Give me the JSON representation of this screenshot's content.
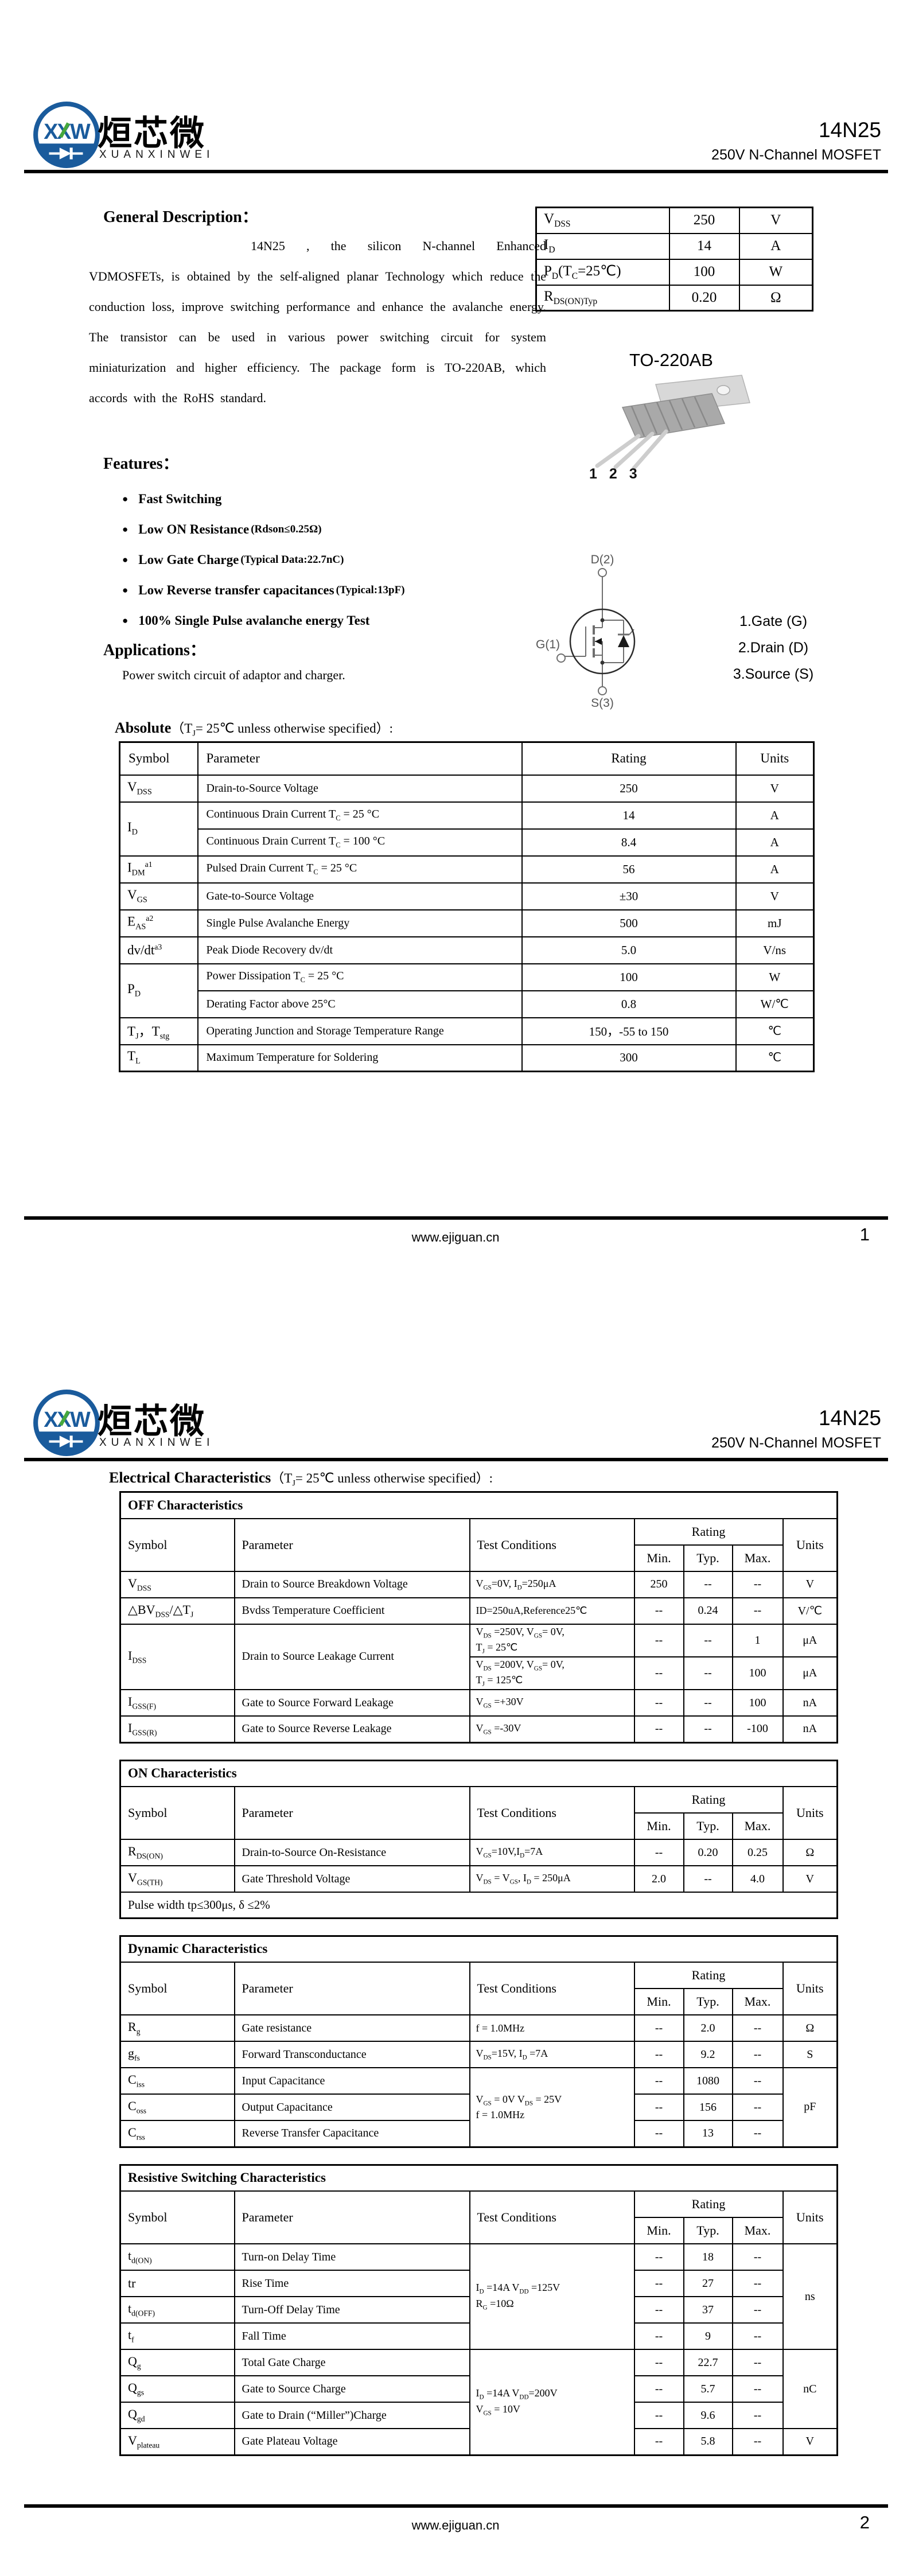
{
  "brand": {
    "cn": "烜芯微",
    "en": "XUANXINWEI",
    "part": "14N25",
    "subtitle": "250V N-Channel MOSFET",
    "logo_colors": {
      "blue": "#1a5b9c",
      "green": "#46a83c"
    }
  },
  "footer": {
    "url": "www.ejiguan.cn",
    "page1": "1",
    "page2": "2"
  },
  "page1": {
    "general": {
      "title": "General Description：",
      "body": "14N25 , the silicon N-channel Enhanced VDMOSFETs, is obtained by the self-aligned planar Technology which reduce the conduction loss, improve switching performance and enhance the avalanche energy. The transistor can be used in various power switching circuit for system miniaturization and higher efficiency. The package form is TO-220AB, which accords with the RoHS standard."
    },
    "features": {
      "title": "Features：",
      "items": [
        {
          "text": "Fast Switching",
          "note": ""
        },
        {
          "text": "Low ON Resistance",
          "note": "(Rdson≤0.25Ω)"
        },
        {
          "text": "Low Gate Charge",
          "note": " (Typical Data:22.7nC)"
        },
        {
          "text": "Low Reverse transfer capacitances",
          "note": "(Typical:13pF)"
        },
        {
          "text": "100% Single Pulse avalanche energy Test",
          "note": ""
        }
      ]
    },
    "applications": {
      "title": "Applications：",
      "body": "Power switch circuit of adaptor and charger."
    },
    "summary": {
      "rows": [
        {
          "label": "V_DSS_",
          "value": "250",
          "unit": "V"
        },
        {
          "label": "I_D_",
          "value": "14",
          "unit": "A"
        },
        {
          "label": "P_D_(T_C_=25℃)",
          "value": "100",
          "unit": "W"
        },
        {
          "label": "R_DS(ON)Typ_",
          "value": "0.20",
          "unit": "Ω"
        }
      ]
    },
    "package": {
      "name": "TO-220AB",
      "pins": "1 2 3",
      "sym_d": "D(2)",
      "sym_g": "G(1)",
      "sym_s": "S(3)",
      "legend": [
        "1.Gate (G)",
        "2.Drain (D)",
        "3.Source (S)"
      ]
    },
    "absolute": {
      "title": "Absolute",
      "title_rest": "（T_J_= 25℃  unless otherwise specified）:",
      "headers": [
        "Symbol",
        "Parameter",
        "Rating",
        "Units"
      ],
      "rows": [
        {
          "symbol": "V_DSS_",
          "parameter": "Drain-to-Source Voltage",
          "rating": "250",
          "unit": "V"
        },
        {
          "symbol": "I_D_",
          "parameter": "Continuous Drain Current T_C_ = 25 °C",
          "rating": "14",
          "unit": "A"
        },
        {
          "parameter": "Continuous Drain Current T_C_ = 100 °C",
          "rating": "8.4",
          "unit": "A"
        },
        {
          "symbol": "I_DM_^a1^",
          "parameter": "Pulsed Drain Current T_C_ = 25 °C",
          "rating": "56",
          "unit": "A"
        },
        {
          "symbol": "V_GS_",
          "parameter": "Gate-to-Source Voltage",
          "rating": "±30",
          "unit": "V"
        },
        {
          "symbol": "E_AS_^a2^",
          "parameter": "Single Pulse Avalanche Energy",
          "rating": "500",
          "unit": "mJ"
        },
        {
          "symbol": "dv/dt^a3^",
          "parameter": "Peak Diode Recovery dv/dt",
          "rating": "5.0",
          "unit": "V/ns"
        },
        {
          "symbol": "P_D_",
          "parameter": "Power Dissipation T_C_ = 25 °C",
          "rating": "100",
          "unit": "W"
        },
        {
          "parameter": "Derating Factor above 25°C",
          "rating": "0.8",
          "unit": "W/℃"
        },
        {
          "symbol": "T_J_，T_stg_",
          "parameter": "Operating Junction and Storage Temperature Range",
          "rating": "150，-55 to 150",
          "unit": "℃"
        },
        {
          "symbol": "T_L_",
          "parameter": "Maximum Temperature for Soldering",
          "rating": "300",
          "unit": "℃"
        }
      ]
    }
  },
  "page2": {
    "title": "Electrical Characteristics",
    "title_rest": "（T_J_= 25℃  unless otherwise specified）:",
    "headers": {
      "symbol": "Symbol",
      "parameter": "Parameter",
      "conditions": "Test Conditions",
      "rating": "Rating",
      "min": "Min.",
      "typ": "Typ.",
      "max": "Max.",
      "units": "Units"
    },
    "off": {
      "title": "OFF Characteristics",
      "rows": [
        {
          "symbol": "V_DSS_",
          "parameter": "Drain to Source Breakdown Voltage",
          "conditions": "V_GS_=0V, I_D_=250μA",
          "min": "250",
          "typ": "--",
          "max": "--",
          "unit": "V"
        },
        {
          "symbol": "△BV_DSS_/△T_J_",
          "parameter": "Bvdss Temperature Coefficient",
          "conditions": "ID=250uA,Reference25℃",
          "min": "--",
          "typ": "0.24",
          "max": "--",
          "unit": "V/℃"
        },
        {
          "symbol": "I_DSS_",
          "parameter": "Drain to Source Leakage Current",
          "conditions": "V_DS_ =250V, V_GS_= 0V,\nT_J_ = 25℃",
          "min": "--",
          "typ": "--",
          "max": "1",
          "unit": "μA"
        },
        {
          "conditions": "V_DS_ =200V, V_GS_= 0V,\nT_J_ = 125℃",
          "min": "--",
          "typ": "--",
          "max": "100",
          "unit": "μA"
        },
        {
          "symbol": "I_GSS(F)_",
          "parameter": "Gate to Source Forward Leakage",
          "conditions": "V_GS_ =+30V",
          "min": "--",
          "typ": "--",
          "max": "100",
          "unit": "nA"
        },
        {
          "symbol": "I_GSS(R)_",
          "parameter": "Gate to Source Reverse Leakage",
          "conditions": "V_GS_ =-30V",
          "min": "--",
          "typ": "--",
          "max": "-100",
          "unit": "nA"
        }
      ]
    },
    "on": {
      "title": "ON Characteristics",
      "rows": [
        {
          "symbol": "R_DS(ON)_",
          "parameter": "Drain-to-Source On-Resistance",
          "conditions": "V_GS_=10V,I_D_=7A",
          "min": "--",
          "typ": "0.20",
          "max": "0.25",
          "unit": "Ω"
        },
        {
          "symbol": "V_GS(TH)_",
          "parameter": "Gate Threshold Voltage",
          "conditions": "V_DS_ = V_GS_, I_D_ = 250μA",
          "min": "2.0",
          "typ": "--",
          "max": "4.0",
          "unit": "V"
        }
      ],
      "note": "Pulse width tp≤300μs, δ ≤2%"
    },
    "dynamic": {
      "title": "Dynamic Characteristics",
      "rows": [
        {
          "symbol": "R_g_",
          "parameter": "Gate resistance",
          "conditions": "f = 1.0MHz",
          "min": "--",
          "typ": "2.0",
          "max": "--",
          "unit": "Ω"
        },
        {
          "symbol": "g_fs_",
          "parameter": "Forward Transconductance",
          "conditions": "V_DS_=15V, I_D_ =7A",
          "min": "--",
          "typ": "9.2",
          "max": "--",
          "unit": "S"
        },
        {
          "symbol": "C_iss_",
          "parameter": "Input Capacitance",
          "conditions": "V_GS_ = 0V V_DS_ = 25V\nf = 1.0MHz",
          "min": "--",
          "typ": "1080",
          "max": "--",
          "unit": "pF"
        },
        {
          "symbol": "C_oss_",
          "parameter": "Output Capacitance",
          "min": "--",
          "typ": "156",
          "max": "--"
        },
        {
          "symbol": "C_rss_",
          "parameter": "Reverse Transfer Capacitance",
          "min": "--",
          "typ": "13",
          "max": "--"
        }
      ]
    },
    "switching": {
      "title": "Resistive Switching Characteristics",
      "rows": [
        {
          "symbol": "t_d(ON)_",
          "parameter": "Turn-on Delay Time",
          "conditions": "I_D_ =14A   V_DD_ =125V\nR_G_ =10Ω",
          "min": "--",
          "typ": "18",
          "max": "--",
          "unit": "ns"
        },
        {
          "symbol": "tr",
          "parameter": "Rise Time",
          "min": "--",
          "typ": "27",
          "max": "--"
        },
        {
          "symbol": "t_d(OFF)_",
          "parameter": "Turn-Off Delay Time",
          "min": "--",
          "typ": "37",
          "max": "--"
        },
        {
          "symbol": "t_f_",
          "parameter": "Fall Time",
          "min": "--",
          "typ": "9",
          "max": "--"
        },
        {
          "symbol": "Q_g_",
          "parameter": "Total Gate Charge",
          "conditions": "I_D_ =14A   V_DD_=200V\nV_GS_ = 10V",
          "min": "--",
          "typ": "22.7",
          "max": "--",
          "unit": "nC"
        },
        {
          "symbol": "Q_gs_",
          "parameter": "Gate to Source Charge",
          "min": "--",
          "typ": "5.7",
          "max": "--"
        },
        {
          "symbol": "Q_gd_",
          "parameter": "Gate to Drain (“Miller”)Charge",
          "min": "--",
          "typ": "9.6",
          "max": "--"
        },
        {
          "symbol": "V_plateau_",
          "parameter": "Gate Plateau Voltage",
          "min": "--",
          "typ": "5.8",
          "max": "--",
          "unit": "V"
        }
      ]
    }
  }
}
